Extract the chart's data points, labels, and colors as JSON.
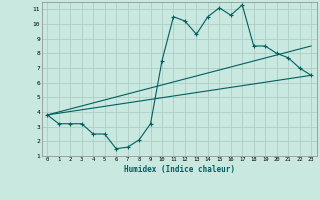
{
  "title": "",
  "xlabel": "Humidex (Indice chaleur)",
  "xlim": [
    -0.5,
    23.5
  ],
  "ylim": [
    1,
    11.5
  ],
  "xticks": [
    0,
    1,
    2,
    3,
    4,
    5,
    6,
    7,
    8,
    9,
    10,
    11,
    12,
    13,
    14,
    15,
    16,
    17,
    18,
    19,
    20,
    21,
    22,
    23
  ],
  "yticks": [
    1,
    2,
    3,
    4,
    5,
    6,
    7,
    8,
    9,
    10,
    11
  ],
  "bg_color": "#c8e8e0",
  "grid_color": "#a8c8c0",
  "line_color": "#006060",
  "line1_x": [
    0,
    1,
    2,
    3,
    4,
    5,
    6,
    7,
    8,
    9,
    10,
    11,
    12,
    13,
    14,
    15,
    16,
    17,
    18,
    19,
    20,
    21,
    22,
    23
  ],
  "line1_y": [
    3.8,
    3.2,
    3.2,
    3.2,
    2.5,
    2.5,
    1.5,
    1.6,
    2.1,
    3.2,
    7.5,
    10.5,
    10.2,
    9.3,
    10.5,
    11.1,
    10.6,
    11.3,
    8.5,
    8.5,
    8.0,
    7.7,
    7.0,
    6.5
  ],
  "line2_x": [
    0,
    23
  ],
  "line2_y": [
    3.8,
    6.5
  ],
  "line3_x": [
    0,
    23
  ],
  "line3_y": [
    3.8,
    8.5
  ]
}
